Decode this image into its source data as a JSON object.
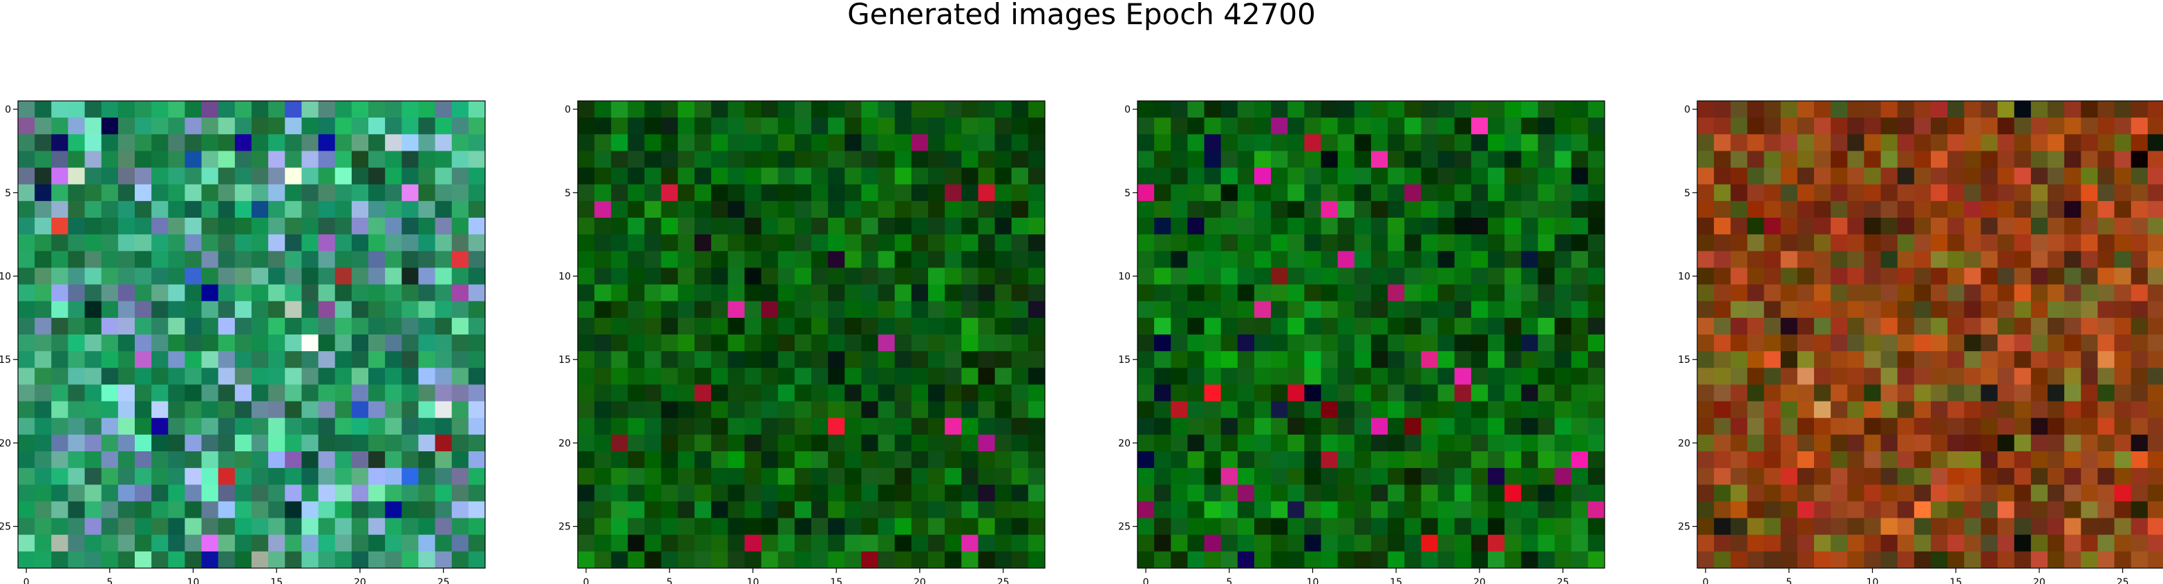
{
  "figure": {
    "title": "Generated images Epoch 42700"
  },
  "axes": {
    "x_ticks": [
      "0",
      "5",
      "10",
      "15",
      "20",
      "25"
    ],
    "y_ticks": [
      "0",
      "5",
      "10",
      "15",
      "20",
      "25"
    ],
    "grid_size": 28
  },
  "images": [
    {
      "name": "generated-image-1",
      "palette": "teal-purple-noise",
      "base_colors": [
        "#1f8f5a",
        "#5fbf9a",
        "#8fa8e0",
        "#b060c8",
        "#d03030",
        "#2a60d0",
        "#e0e8e0",
        "#104830",
        "#0a0a80"
      ]
    },
    {
      "name": "generated-image-2",
      "palette": "dark-green-noise",
      "base_colors": [
        "#0a5a10",
        "#0d7a14",
        "#063a08",
        "#02220a",
        "#101020",
        "#c01030",
        "#d020a0"
      ]
    },
    {
      "name": "generated-image-3",
      "palette": "dark-green-noise",
      "base_colors": [
        "#0a6a12",
        "#0d8a16",
        "#053a08",
        "#021a10",
        "#0a0a40",
        "#c01020",
        "#d02090"
      ]
    },
    {
      "name": "generated-image-4",
      "palette": "red-olive-noise",
      "base_colors": [
        "#8a3a10",
        "#b04a20",
        "#6a6a20",
        "#3a2a10",
        "#c02020",
        "#e07030",
        "#2a4010",
        "#101010",
        "#d09050"
      ]
    }
  ]
}
